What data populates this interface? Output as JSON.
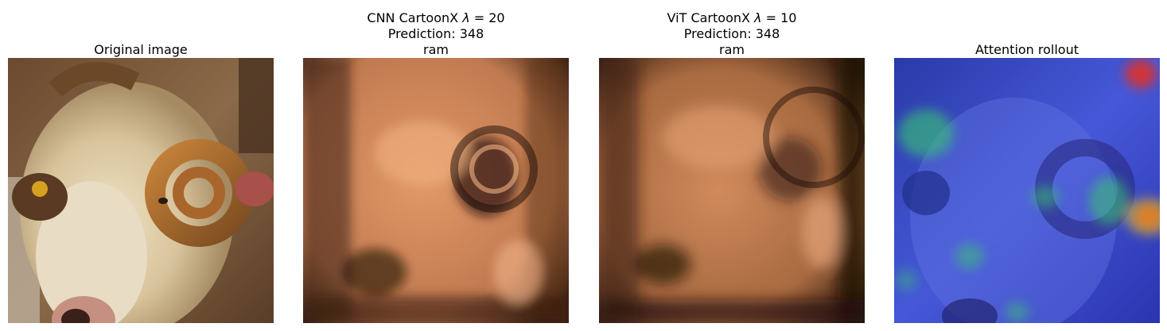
{
  "panels": [
    {
      "title_lines": [
        "Original image"
      ],
      "image_desc": "photograph of a ram with curled horns"
    },
    {
      "title_line1_prefix": "CNN CartoonX ",
      "title_line1_lambda": "λ",
      "title_line1_suffix": " = 20",
      "title_line2": "Prediction: 348",
      "title_line3": "ram",
      "image_desc": "copper-toned CartoonX mask"
    },
    {
      "title_line1_prefix": "ViT CartoonX ",
      "title_line1_lambda": "λ",
      "title_line1_suffix": " = 10",
      "title_line2": "Prediction: 348",
      "title_line3": "ram",
      "image_desc": "copper-toned CartoonX mask"
    },
    {
      "title_lines": [
        "Attention rollout"
      ],
      "image_desc": "blue attention heatmap overlay on ram"
    }
  ],
  "colors": {
    "copper_light": "#f0a878",
    "copper_mid": "#b8754a",
    "copper_dark": "#2a160c",
    "heat_blue": "#3040c8",
    "heat_red": "#e83020",
    "heat_green": "#38c870"
  }
}
